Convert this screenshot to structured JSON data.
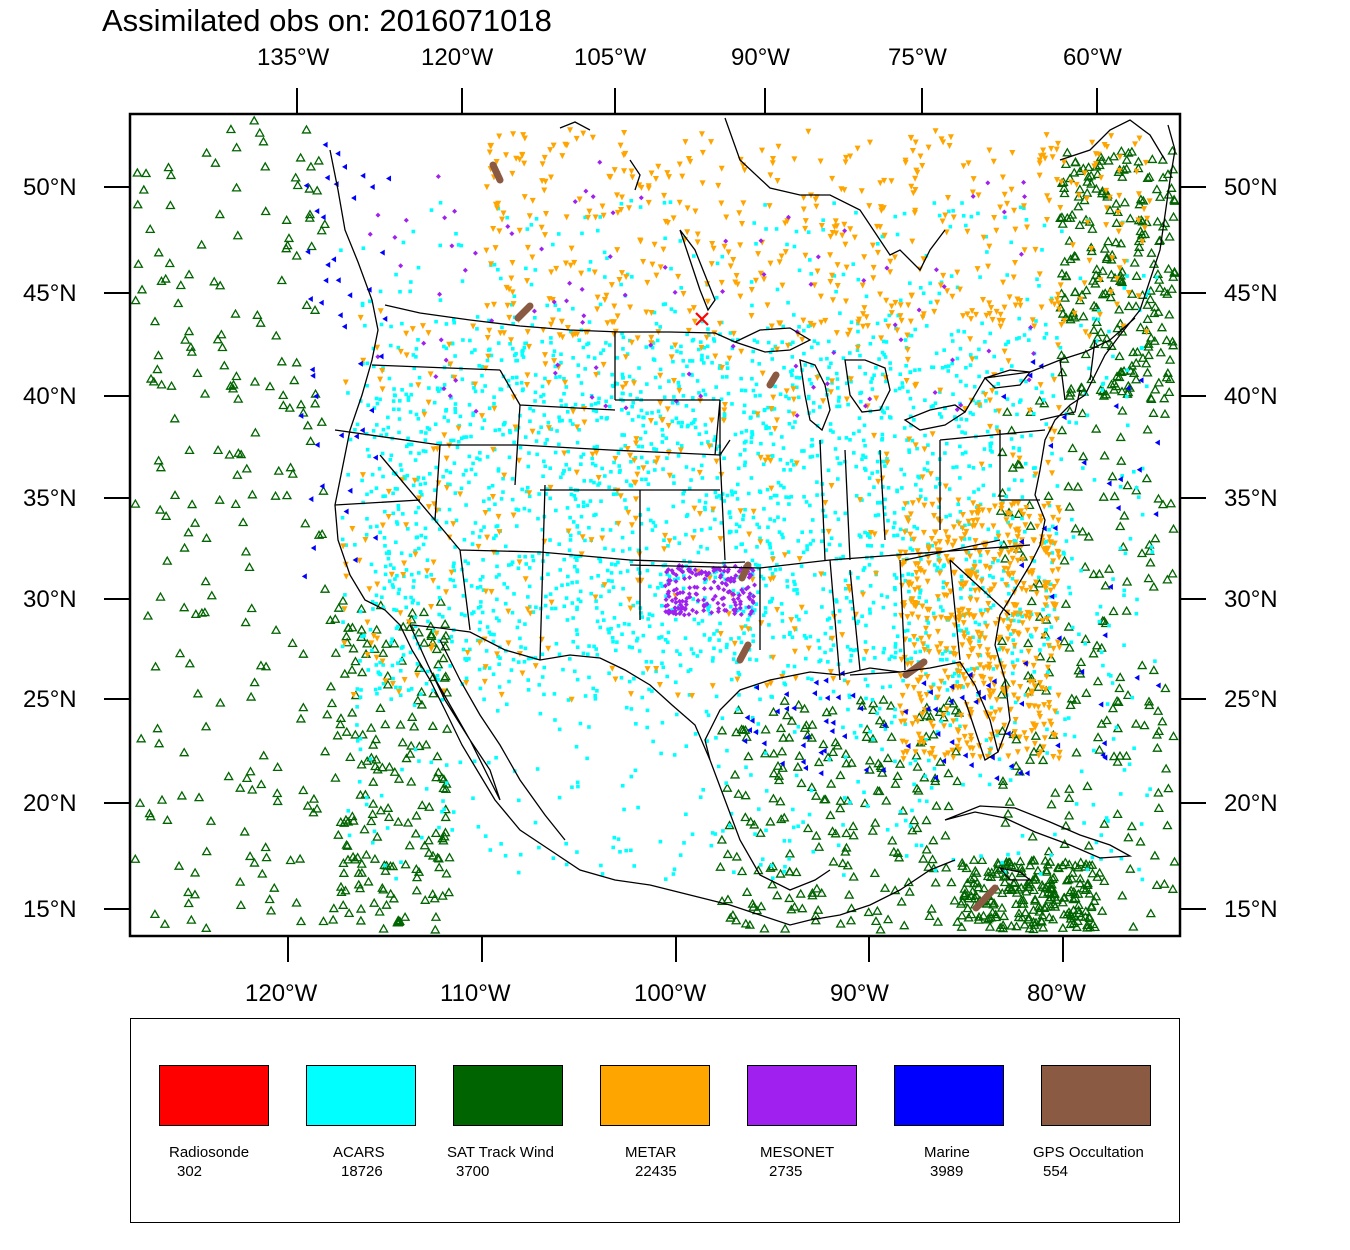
{
  "title": "Assimilated obs on: 2016071018",
  "top_axis": [
    "135°W",
    "120°W",
    "105°W",
    "90°W",
    "75°W",
    "60°W"
  ],
  "bottom_axis": [
    "120°W",
    "110°W",
    "100°W",
    "90°W",
    "80°W"
  ],
  "left_axis": [
    "50°N",
    "45°N",
    "40°N",
    "35°N",
    "30°N",
    "25°N",
    "20°N",
    "15°N"
  ],
  "right_axis": [
    "50°N",
    "45°N",
    "40°N",
    "35°N",
    "30°N",
    "25°N",
    "20°N",
    "15°N"
  ],
  "legend": [
    {
      "name": "Radiosonde",
      "count": "302",
      "color": "#ff0000"
    },
    {
      "name": "ACARS",
      "count": "18726",
      "color": "#00ffff"
    },
    {
      "name": "SAT Track Wind",
      "count": "3700",
      "color": "#006400"
    },
    {
      "name": "METAR",
      "count": "22435",
      "color": "#ffa500"
    },
    {
      "name": "MESONET",
      "count": "2735",
      "color": "#a020f0"
    },
    {
      "name": "Marine",
      "count": "3989",
      "color": "#0000ff"
    },
    {
      "name": "GPS Occultation",
      "count": "554",
      "color": "#8b5a42"
    }
  ]
}
